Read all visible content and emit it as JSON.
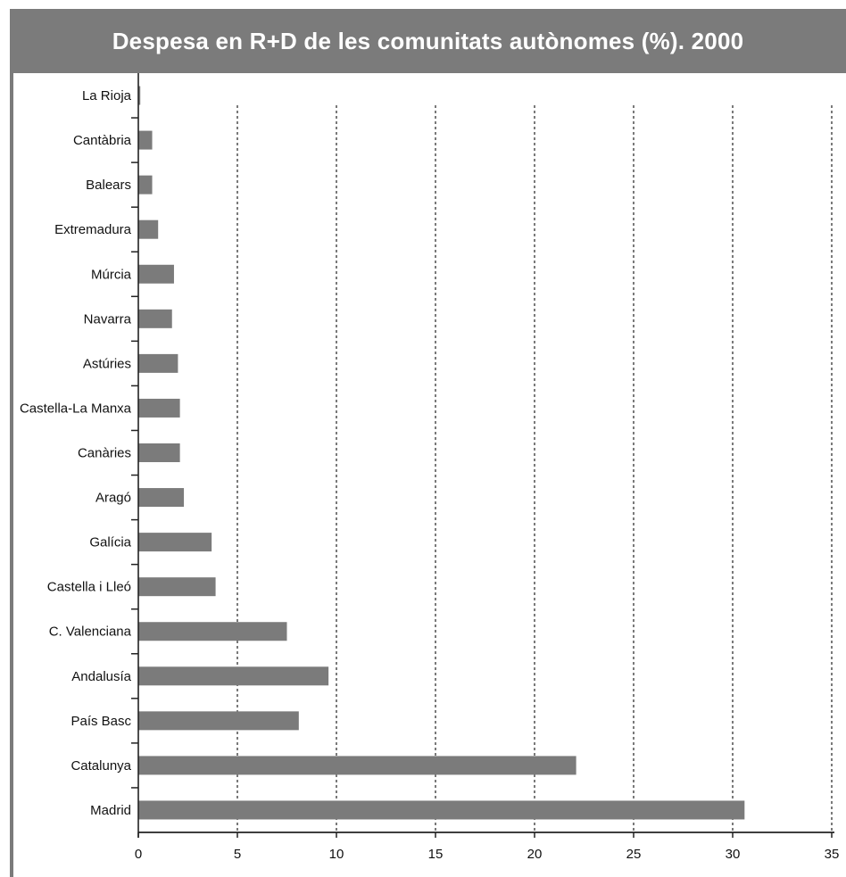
{
  "chart_data": {
    "type": "bar",
    "orientation": "horizontal",
    "title": "Despesa en R+D de les comunitats autònomes (%). 2000",
    "categories": [
      "La Rioja",
      "Cantàbria",
      "Balears",
      "Extremadura",
      "Múrcia",
      "Navarra",
      "Astúries",
      "Castella-La Manxa",
      "Canàries",
      "Aragó",
      "Galícia",
      "Castella i Lleó",
      "C. Valenciana",
      "Andalusía",
      "País Basc",
      "Catalunya",
      "Madrid"
    ],
    "values": [
      0.1,
      0.7,
      0.7,
      1.0,
      1.8,
      1.7,
      2.0,
      2.1,
      2.1,
      2.3,
      3.7,
      3.9,
      7.5,
      9.6,
      8.1,
      22.1,
      30.6
    ],
    "xlim": [
      0,
      35
    ],
    "xticks": [
      "0",
      "5",
      "10",
      "15",
      "20",
      "25",
      "30",
      "35"
    ],
    "grid": "vertical-dashed",
    "legend": "none",
    "bar_color": "#7b7b7b",
    "header_color": "#7b7b7b"
  }
}
